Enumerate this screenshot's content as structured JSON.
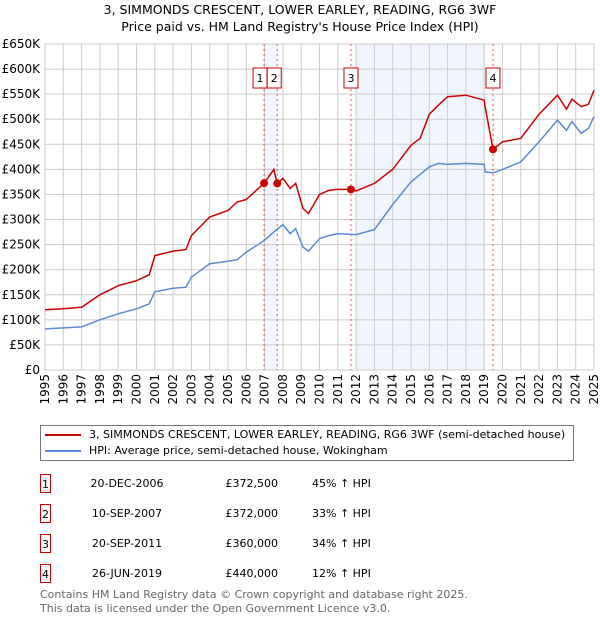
{
  "chart_data": {
    "type": "line",
    "title": "3, SIMMONDS CRESCENT, LOWER EARLEY, READING, RG6 3WF",
    "subtitle": "Price paid vs. HM Land Registry's House Price Index (HPI)",
    "xlim": [
      1995,
      2025
    ],
    "ylim": [
      0,
      650000
    ],
    "grid": true,
    "y_ticks": [
      0,
      50000,
      100000,
      150000,
      200000,
      250000,
      300000,
      350000,
      400000,
      450000,
      500000,
      550000,
      600000,
      650000
    ],
    "y_tick_labels": [
      "£0",
      "£50K",
      "£100K",
      "£150K",
      "£200K",
      "£250K",
      "£300K",
      "£350K",
      "£400K",
      "£450K",
      "£500K",
      "£550K",
      "£600K",
      "£650K"
    ],
    "x_ticks": [
      "1995",
      "1996",
      "1997",
      "1998",
      "1999",
      "2000",
      "2001",
      "2002",
      "2003",
      "2004",
      "2005",
      "2006",
      "2007",
      "2008",
      "2009",
      "2010",
      "2011",
      "2012",
      "2013",
      "2014",
      "2015",
      "2016",
      "2017",
      "2018",
      "2019",
      "2020",
      "2021",
      "2022",
      "2023",
      "2024",
      "2025"
    ],
    "shaded_ranges": [
      [
        2006.97,
        2007.69
      ],
      [
        2012.0,
        2019.05
      ]
    ],
    "series": [
      {
        "name": "3, SIMMONDS CRESCENT, LOWER EARLEY, READING, RG6 3WF (semi-detached house)",
        "color": "#cc0000",
        "x": [
          1995,
          1996,
          1997,
          1998,
          1999,
          2000,
          2000.7,
          2001,
          2002,
          2002.7,
          2003,
          2004,
          2005,
          2005.5,
          2006,
          2006.97,
          2007.5,
          2007.69,
          2008,
          2008.4,
          2008.7,
          2009.1,
          2009.4,
          2010,
          2010.5,
          2011,
          2011.72,
          2012,
          2013,
          2014,
          2015,
          2015.5,
          2016,
          2016.5,
          2017,
          2018,
          2019.0,
          2019.05,
          2019.48,
          2020,
          2021,
          2022,
          2023,
          2023.5,
          2023.8,
          2024.3,
          2024.7,
          2025
        ],
        "y": [
          120000,
          122000,
          125000,
          150000,
          168000,
          178000,
          190000,
          228000,
          237000,
          240000,
          268000,
          305000,
          318000,
          335000,
          340000,
          372500,
          400000,
          372000,
          382000,
          362000,
          372000,
          322000,
          312000,
          350000,
          358000,
          360000,
          360000,
          357000,
          372000,
          400000,
          448000,
          462000,
          510000,
          528000,
          545000,
          548000,
          538000,
          525000,
          440000,
          455000,
          462000,
          510000,
          548000,
          520000,
          540000,
          525000,
          530000,
          558000
        ]
      },
      {
        "name": "HPI: Average price, semi-detached house, Wokingham",
        "color": "#5b8bd0",
        "x": [
          1995,
          1996,
          1997,
          1998,
          1999,
          2000,
          2000.7,
          2001,
          2002,
          2002.7,
          2003,
          2004,
          2005,
          2005.5,
          2006,
          2006.97,
          2007.5,
          2008,
          2008.4,
          2008.7,
          2009.1,
          2009.4,
          2010,
          2010.5,
          2011,
          2012,
          2013,
          2014,
          2015,
          2015.5,
          2016,
          2016.5,
          2017,
          2018,
          2019.0,
          2019.05,
          2019.48,
          2020,
          2021,
          2022,
          2023,
          2023.5,
          2023.8,
          2024.3,
          2024.7,
          2025
        ],
        "y": [
          82000,
          84000,
          86000,
          100000,
          112000,
          122000,
          132000,
          156000,
          163000,
          165000,
          185000,
          212000,
          217000,
          220000,
          235000,
          258000,
          275000,
          290000,
          272000,
          282000,
          245000,
          237000,
          262000,
          268000,
          272000,
          270000,
          280000,
          330000,
          375000,
          390000,
          405000,
          412000,
          410000,
          412000,
          410000,
          395000,
          393000,
          400000,
          415000,
          455000,
          498000,
          478000,
          495000,
          472000,
          482000,
          505000
        ]
      }
    ],
    "sales": [
      {
        "num": "1",
        "x": 2006.97,
        "y": 372500
      },
      {
        "num": "2",
        "x": 2007.69,
        "y": 372000
      },
      {
        "num": "3",
        "x": 2011.72,
        "y": 360000
      },
      {
        "num": "4",
        "x": 2019.48,
        "y": 440000
      }
    ]
  },
  "legend": {
    "red_label": "3, SIMMONDS CRESCENT, LOWER EARLEY, READING, RG6 3WF (semi-detached house)",
    "blue_label": "HPI: Average price, semi-detached house, Wokingham"
  },
  "table": [
    {
      "num": "1",
      "date": "20-DEC-2006",
      "price": "£372,500",
      "hpi": "45% ↑ HPI"
    },
    {
      "num": "2",
      "date": "10-SEP-2007",
      "price": "£372,000",
      "hpi": "33% ↑ HPI"
    },
    {
      "num": "3",
      "date": "20-SEP-2011",
      "price": "£360,000",
      "hpi": "34% ↑ HPI"
    },
    {
      "num": "4",
      "date": "26-JUN-2019",
      "price": "£440,000",
      "hpi": "12% ↑ HPI"
    }
  ],
  "footer": {
    "line1": "Contains HM Land Registry data © Crown copyright and database right 2025.",
    "line2": "This data is licensed under the Open Government Licence v3.0."
  }
}
